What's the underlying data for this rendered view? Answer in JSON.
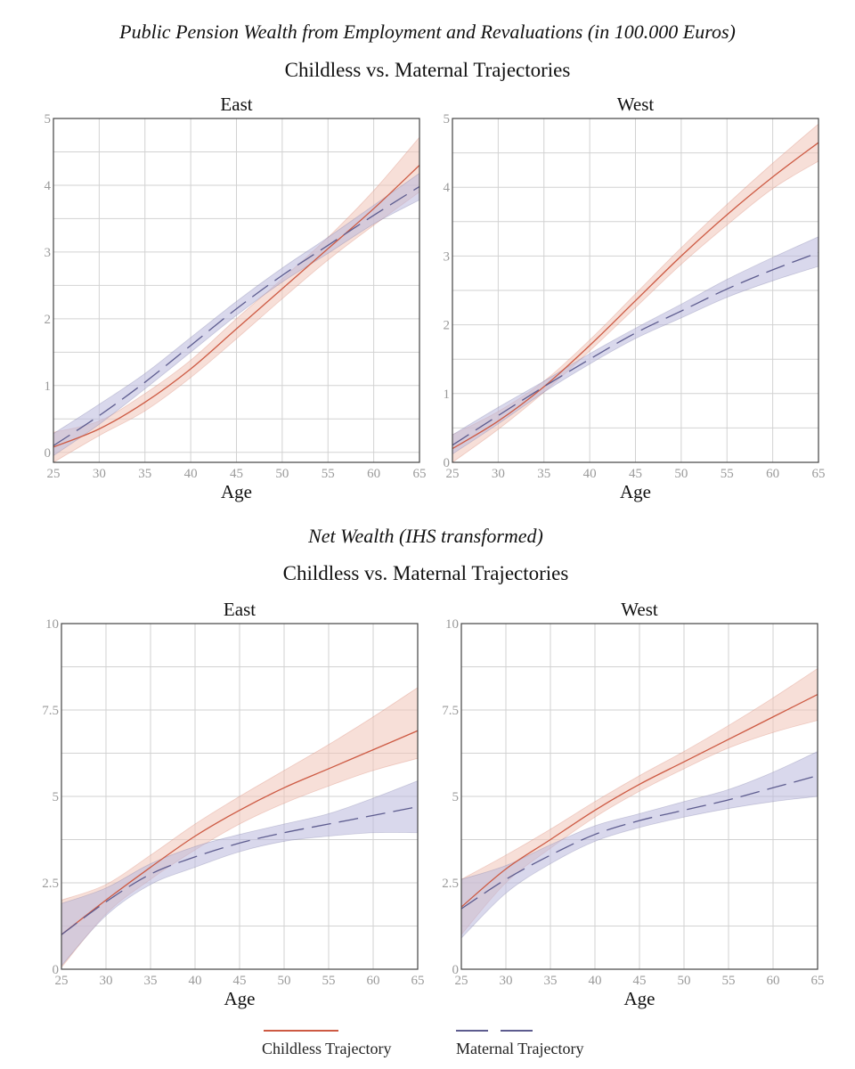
{
  "colors": {
    "childless": "#cd5a43",
    "childless_band": "#f0c4b8",
    "maternal": "#5d5c8f",
    "maternal_band": "#b9b8dc",
    "grid": "#d2d2d2",
    "frame": "#444444"
  },
  "sections": [
    {
      "title": "Public Pension Wealth from Employment and Revaluations (in 100.000 Euros)",
      "subtitle": "Childless vs. Maternal Trajectories"
    },
    {
      "title": "Net Wealth (IHS transformed)",
      "subtitle": "Childless vs. Maternal Trajectories"
    }
  ],
  "legend": {
    "childless_label": "Childless Trajectory",
    "maternal_label": "Maternal Trajectory"
  },
  "chart_data": [
    {
      "type": "line",
      "section": 0,
      "title": "East",
      "xlabel": "Age",
      "ylabel": "",
      "xlim": [
        25,
        65
      ],
      "ylim": [
        -0.15,
        5
      ],
      "xticks": [
        25,
        30,
        35,
        40,
        45,
        50,
        55,
        60,
        65
      ],
      "yticks": [
        0,
        1,
        2,
        3,
        4,
        5
      ],
      "ytick_labels": [
        "0",
        "1",
        "2",
        "3",
        "4",
        "5"
      ],
      "x": [
        25,
        30,
        35,
        40,
        45,
        50,
        55,
        60,
        65
      ],
      "series": [
        {
          "name": "Childless Trajectory",
          "style": "solid",
          "values": [
            0.08,
            0.35,
            0.75,
            1.25,
            1.85,
            2.45,
            3.05,
            3.65,
            4.3
          ],
          "lower": [
            -0.15,
            0.25,
            0.62,
            1.12,
            1.7,
            2.3,
            2.88,
            3.4,
            3.9
          ],
          "upper": [
            0.3,
            0.47,
            0.88,
            1.38,
            2.0,
            2.6,
            3.22,
            3.92,
            4.72
          ]
        },
        {
          "name": "Maternal Trajectory",
          "style": "dashed",
          "values": [
            0.1,
            0.55,
            1.05,
            1.6,
            2.15,
            2.65,
            3.1,
            3.55,
            3.98
          ],
          "lower": [
            -0.05,
            0.42,
            0.95,
            1.5,
            2.05,
            2.55,
            2.98,
            3.42,
            3.78
          ],
          "upper": [
            0.28,
            0.72,
            1.18,
            1.72,
            2.26,
            2.76,
            3.22,
            3.7,
            4.18
          ]
        }
      ]
    },
    {
      "type": "line",
      "section": 0,
      "title": "West",
      "xlabel": "Age",
      "ylabel": "",
      "xlim": [
        25,
        65
      ],
      "ylim": [
        0,
        5
      ],
      "xticks": [
        25,
        30,
        35,
        40,
        45,
        50,
        55,
        60,
        65
      ],
      "yticks": [
        0,
        1,
        2,
        3,
        4,
        5
      ],
      "ytick_labels": [
        "0",
        "1",
        "2",
        "3",
        "4",
        "5"
      ],
      "x": [
        25,
        30,
        35,
        40,
        45,
        50,
        55,
        60,
        65
      ],
      "series": [
        {
          "name": "Childless Trajectory",
          "style": "solid",
          "values": [
            0.2,
            0.6,
            1.1,
            1.7,
            2.35,
            3.0,
            3.6,
            4.15,
            4.65
          ],
          "lower": [
            0.0,
            0.48,
            1.02,
            1.62,
            2.25,
            2.88,
            3.45,
            3.98,
            4.38
          ],
          "upper": [
            0.4,
            0.74,
            1.18,
            1.78,
            2.45,
            3.12,
            3.75,
            4.35,
            4.92
          ]
        },
        {
          "name": "Maternal Trajectory",
          "style": "dashed",
          "values": [
            0.25,
            0.68,
            1.1,
            1.5,
            1.88,
            2.2,
            2.52,
            2.8,
            3.05
          ],
          "lower": [
            0.12,
            0.56,
            1.02,
            1.43,
            1.8,
            2.1,
            2.4,
            2.64,
            2.85
          ],
          "upper": [
            0.4,
            0.8,
            1.18,
            1.58,
            1.95,
            2.3,
            2.66,
            2.98,
            3.28
          ]
        }
      ]
    },
    {
      "type": "line",
      "section": 1,
      "title": "East",
      "xlabel": "Age",
      "ylabel": "",
      "xlim": [
        25,
        65
      ],
      "ylim": [
        0,
        10
      ],
      "xticks": [
        25,
        30,
        35,
        40,
        45,
        50,
        55,
        60,
        65
      ],
      "yticks": [
        0,
        2.5,
        5,
        7.5,
        10
      ],
      "ytick_labels": [
        "0",
        "2.5",
        "5",
        "7.5",
        "10"
      ],
      "x": [
        25,
        30,
        35,
        40,
        45,
        50,
        55,
        60,
        65
      ],
      "series": [
        {
          "name": "Childless Trajectory",
          "style": "solid",
          "values": [
            1.0,
            2.0,
            2.95,
            3.85,
            4.6,
            5.25,
            5.8,
            6.35,
            6.9
          ],
          "lower": [
            0.05,
            1.6,
            2.6,
            3.45,
            4.2,
            4.8,
            5.3,
            5.75,
            6.1
          ],
          "upper": [
            2.0,
            2.45,
            3.3,
            4.2,
            5.0,
            5.75,
            6.5,
            7.3,
            8.15
          ]
        },
        {
          "name": "Maternal Trajectory",
          "style": "dashed",
          "values": [
            1.0,
            1.95,
            2.75,
            3.25,
            3.65,
            3.95,
            4.2,
            4.45,
            4.7
          ],
          "lower": [
            0.1,
            1.55,
            2.45,
            2.95,
            3.4,
            3.7,
            3.85,
            3.95,
            3.95
          ],
          "upper": [
            1.9,
            2.35,
            3.05,
            3.55,
            3.9,
            4.2,
            4.5,
            4.95,
            5.45
          ]
        }
      ]
    },
    {
      "type": "line",
      "section": 1,
      "title": "West",
      "xlabel": "Age",
      "ylabel": "",
      "xlim": [
        25,
        65
      ],
      "ylim": [
        0,
        10
      ],
      "xticks": [
        25,
        30,
        35,
        40,
        45,
        50,
        55,
        60,
        65
      ],
      "yticks": [
        0,
        2.5,
        5,
        7.5,
        10
      ],
      "ytick_labels": [
        "0",
        "2.5",
        "5",
        "7.5",
        "10"
      ],
      "x": [
        25,
        30,
        35,
        40,
        45,
        50,
        55,
        60,
        65
      ],
      "series": [
        {
          "name": "Childless Trajectory",
          "style": "solid",
          "values": [
            1.8,
            2.9,
            3.75,
            4.6,
            5.35,
            6.0,
            6.65,
            7.3,
            7.95
          ],
          "lower": [
            1.0,
            2.5,
            3.5,
            4.4,
            5.15,
            5.8,
            6.4,
            6.85,
            7.2
          ],
          "upper": [
            2.6,
            3.3,
            4.05,
            4.85,
            5.6,
            6.3,
            7.05,
            7.85,
            8.7
          ]
        },
        {
          "name": "Maternal Trajectory",
          "style": "dashed",
          "values": [
            1.75,
            2.6,
            3.3,
            3.9,
            4.3,
            4.6,
            4.9,
            5.25,
            5.6
          ],
          "lower": [
            0.9,
            2.2,
            3.05,
            3.7,
            4.1,
            4.4,
            4.65,
            4.85,
            5.0
          ],
          "upper": [
            2.6,
            3.0,
            3.6,
            4.15,
            4.5,
            4.85,
            5.2,
            5.7,
            6.3
          ]
        }
      ]
    }
  ]
}
